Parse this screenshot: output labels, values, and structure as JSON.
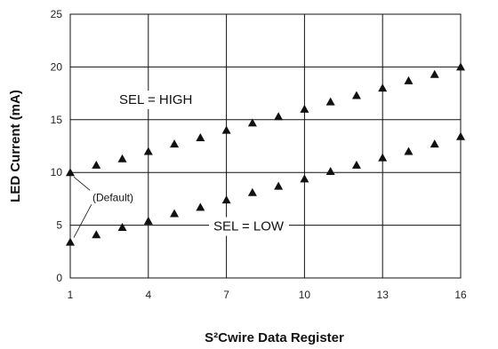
{
  "chart_data": {
    "type": "scatter",
    "xlabel": "S²Cwire Data Register",
    "ylabel": "LED Current (mA)",
    "xlim": [
      1,
      16
    ],
    "ylim": [
      0,
      25
    ],
    "x_ticks": [
      1,
      4,
      7,
      10,
      13,
      16
    ],
    "y_ticks": [
      0,
      5,
      10,
      15,
      20,
      25
    ],
    "grid": true,
    "marker": "triangle",
    "marker_color": "#111111",
    "series": [
      {
        "name": "SEL = HIGH",
        "x": [
          1,
          2,
          3,
          4,
          5,
          6,
          7,
          8,
          9,
          10,
          11,
          12,
          13,
          14,
          15,
          16
        ],
        "values": [
          10.0,
          10.7,
          11.3,
          12.0,
          12.7,
          13.3,
          14.0,
          14.7,
          15.3,
          16.0,
          16.7,
          17.3,
          18.0,
          18.7,
          19.3,
          20.0
        ]
      },
      {
        "name": "SEL = LOW",
        "x": [
          1,
          2,
          3,
          4,
          5,
          6,
          7,
          8,
          9,
          10,
          11,
          12,
          13,
          14,
          15,
          16
        ],
        "values": [
          3.4,
          4.1,
          4.8,
          5.4,
          6.1,
          6.7,
          7.4,
          8.1,
          8.7,
          9.4,
          10.1,
          10.7,
          11.4,
          12.0,
          12.7,
          13.4
        ]
      }
    ],
    "annotations": {
      "high_label": "SEL = HIGH",
      "low_label": "SEL = LOW",
      "default_label": "(Default)"
    }
  }
}
